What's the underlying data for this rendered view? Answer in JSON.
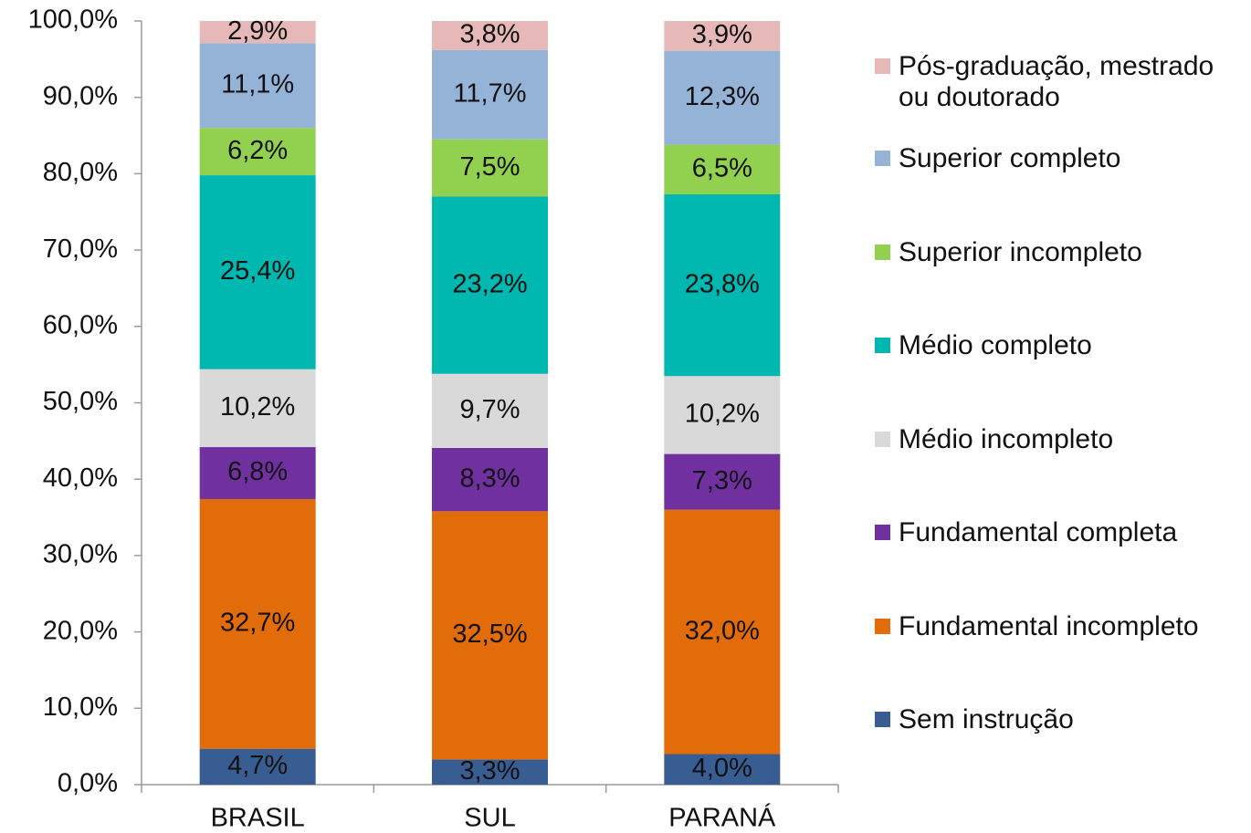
{
  "chart_data": {
    "type": "stacked_bar",
    "categories": [
      "BRASIL",
      "SUL",
      "PARANÁ"
    ],
    "series": [
      {
        "name": "Sem instrução",
        "color": "#375d92",
        "values": [
          4.7,
          3.3,
          4.0
        ],
        "value_labels": [
          "4,7%",
          "3,3%",
          "4,0%"
        ]
      },
      {
        "name": "Fundamental incompleto",
        "color": "#e36c0a",
        "values": [
          32.7,
          32.5,
          32.0
        ],
        "value_labels": [
          "32,7%",
          "32,5%",
          "32,0%"
        ]
      },
      {
        "name": "Fundamental completa",
        "color": "#7030a0",
        "values": [
          6.8,
          8.3,
          7.3
        ],
        "value_labels": [
          "6,8%",
          "8,3%",
          "7,3%"
        ]
      },
      {
        "name": "Médio incompleto",
        "color": "#d9d9d9",
        "values": [
          10.2,
          9.7,
          10.2
        ],
        "value_labels": [
          "10,2%",
          "9,7%",
          "10,2%"
        ]
      },
      {
        "name": "Médio completo",
        "color": "#00b8b0",
        "values": [
          25.4,
          23.2,
          23.8
        ],
        "value_labels": [
          "25,4%",
          "23,2%",
          "23,8%"
        ]
      },
      {
        "name": "Superior incompleto",
        "color": "#92d050",
        "values": [
          6.2,
          7.5,
          6.5
        ],
        "value_labels": [
          "6,2%",
          "7,5%",
          "6,5%"
        ]
      },
      {
        "name": "Superior completo",
        "color": "#95b3d7",
        "values": [
          11.1,
          11.7,
          12.3
        ],
        "value_labels": [
          "11,1%",
          "11,7%",
          "12,3%"
        ]
      },
      {
        "name": "Pós-graduação, mestrado ou doutorado",
        "color": "#e6b9b8",
        "values": [
          2.9,
          3.8,
          3.9
        ],
        "value_labels": [
          "2,9%",
          "3,8%",
          "3,9%"
        ]
      }
    ],
    "ylim": [
      0,
      100
    ],
    "yticks": [
      {
        "value": 0,
        "label": "0,0%"
      },
      {
        "value": 10,
        "label": "10,0%"
      },
      {
        "value": 20,
        "label": "20,0%"
      },
      {
        "value": 30,
        "label": "30,0%"
      },
      {
        "value": 40,
        "label": "40,0%"
      },
      {
        "value": 50,
        "label": "50,0%"
      },
      {
        "value": 60,
        "label": "60,0%"
      },
      {
        "value": 70,
        "label": "70,0%"
      },
      {
        "value": 80,
        "label": "80,0%"
      },
      {
        "value": 90,
        "label": "90,0%"
      },
      {
        "value": 100,
        "label": "100,0%"
      }
    ],
    "grid": false,
    "legend": "right"
  }
}
